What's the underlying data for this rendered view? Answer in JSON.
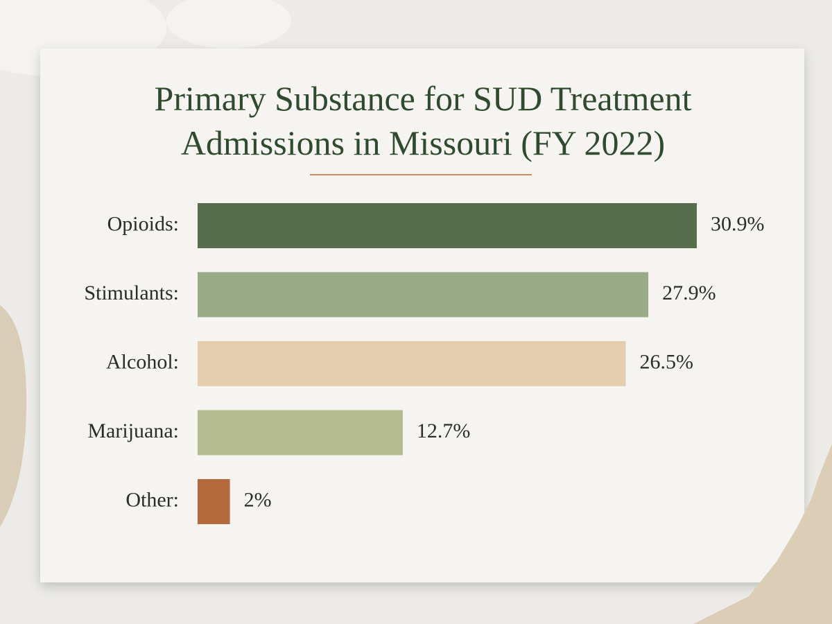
{
  "chart_data": {
    "type": "bar",
    "orientation": "horizontal",
    "title": "Primary Substance for SUD Treatment Admissions in Missouri (FY 2022)",
    "categories": [
      "Opioids:",
      "Stimulants:",
      "Alcohol:",
      "Marijuana:",
      "Other:"
    ],
    "values": [
      30.9,
      27.9,
      26.5,
      12.7,
      2
    ],
    "value_labels": [
      "30.9%",
      "27.9%",
      "26.5%",
      "12.7%",
      "2%"
    ],
    "colors": [
      "#566e4c",
      "#9aab88",
      "#e4cdae",
      "#b4bb90",
      "#b56a3e"
    ]
  }
}
